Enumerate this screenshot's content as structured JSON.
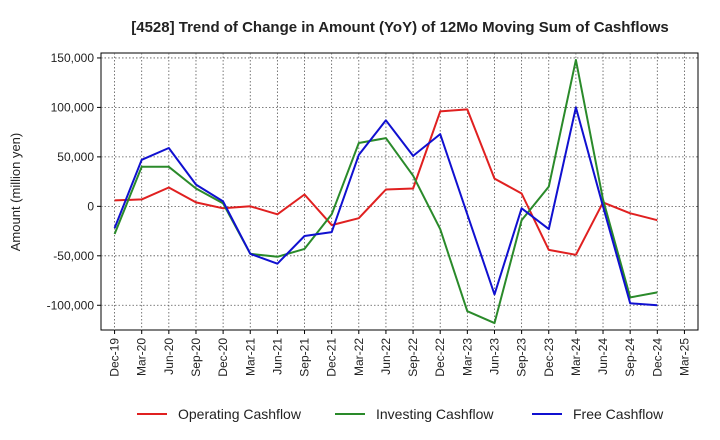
{
  "chart_data": {
    "type": "line",
    "title": "[4528]  Trend of Change in Amount (YoY) of 12Mo Moving Sum of Cashflows",
    "xlabel": "",
    "ylabel": "Amount (million yen)",
    "categories": [
      "Dec-19",
      "Mar-20",
      "Jun-20",
      "Sep-20",
      "Dec-20",
      "Mar-21",
      "Jun-21",
      "Sep-21",
      "Dec-21",
      "Mar-22",
      "Jun-22",
      "Sep-22",
      "Dec-22",
      "Mar-23",
      "Jun-23",
      "Sep-23",
      "Dec-23",
      "Mar-24",
      "Jun-24",
      "Sep-24",
      "Dec-24",
      "Mar-25"
    ],
    "ylim": [
      -125000,
      155000
    ],
    "yticks": [
      150000,
      100000,
      50000,
      0,
      -50000,
      -100000
    ],
    "ytick_labels": [
      "150,000",
      "100,000",
      "50,000",
      "0",
      "-50,000",
      "-100,000"
    ],
    "grid": true,
    "legend_position": "bottom",
    "series": [
      {
        "name": "Operating Cashflow",
        "color": "#e02020",
        "values": [
          6000,
          7000,
          19000,
          4000,
          -2000,
          0,
          -8000,
          12000,
          -19000,
          -12000,
          17000,
          18000,
          96000,
          98000,
          28000,
          13000,
          -44000,
          -49000,
          4000,
          -7000,
          -14000,
          null
        ]
      },
      {
        "name": "Investing Cashflow",
        "color": "#2a8a2a",
        "values": [
          -28000,
          40000,
          40000,
          18000,
          3000,
          -48000,
          -51000,
          -43000,
          -8000,
          64000,
          69000,
          31000,
          -23000,
          -106000,
          -118000,
          -14000,
          20000,
          148000,
          7000,
          -92000,
          -87000,
          null
        ]
      },
      {
        "name": "Free Cashflow",
        "color": "#1010d0",
        "values": [
          -22000,
          47000,
          59000,
          22000,
          5000,
          -48000,
          -58000,
          -30000,
          -26000,
          52000,
          87000,
          51000,
          73000,
          -8000,
          -89000,
          -2000,
          -23000,
          100000,
          0,
          -98000,
          -100000,
          null
        ]
      }
    ]
  }
}
